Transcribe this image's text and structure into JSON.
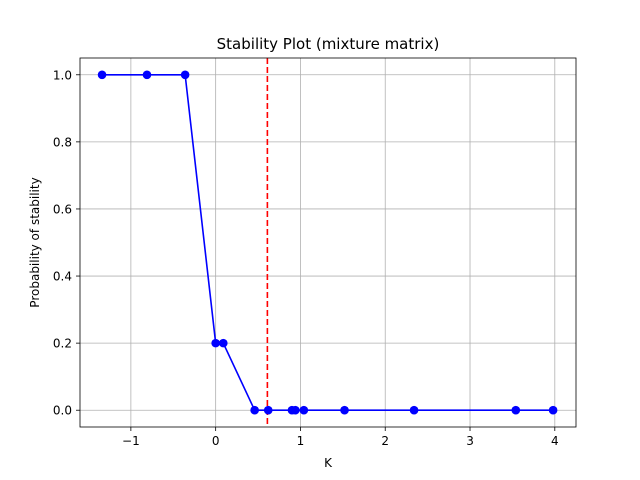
{
  "chart_data": {
    "type": "line",
    "title": "Stability Plot (mixture matrix)",
    "xlabel": "K",
    "ylabel": "Probability of stability",
    "xlim": [
      -1.6,
      4.25
    ],
    "ylim": [
      -0.05,
      1.05
    ],
    "xticks": [
      -1,
      0,
      1,
      2,
      3,
      4
    ],
    "xtick_labels": [
      "−1",
      "0",
      "1",
      "2",
      "3",
      "4"
    ],
    "yticks": [
      0.0,
      0.2,
      0.4,
      0.6,
      0.8,
      1.0
    ],
    "ytick_labels": [
      "0.0",
      "0.2",
      "0.4",
      "0.6",
      "0.8",
      "1.0"
    ],
    "grid": true,
    "series": [
      {
        "color": "#0000ff",
        "marker": "circle",
        "x": [
          -1.34,
          -0.81,
          -0.36,
          0.0,
          0.09,
          0.46,
          0.62,
          0.9,
          0.94,
          1.04,
          1.52,
          2.34,
          3.54,
          3.98
        ],
        "y": [
          1.0,
          1.0,
          1.0,
          0.2,
          0.2,
          0.0,
          0.0,
          0.0,
          0.0,
          0.0,
          0.0,
          0.0,
          0.0,
          0.0
        ]
      }
    ],
    "reference_line": {
      "orientation": "vertical",
      "x": 0.61,
      "color": "#ff0000",
      "style": "dashed"
    }
  }
}
